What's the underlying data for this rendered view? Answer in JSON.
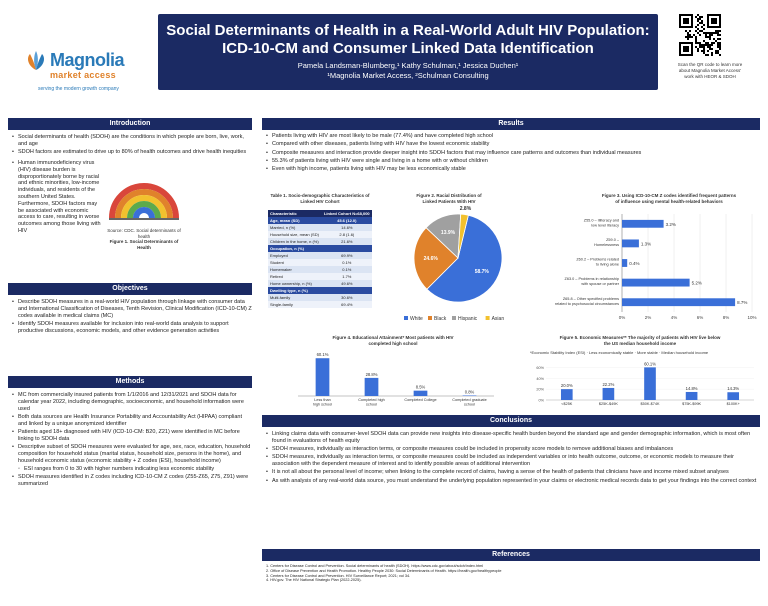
{
  "header": {
    "title_line1": "Social Determinants of Health in a Real-World Adult HIV Population:",
    "title_line2": "ICD-10-CM and Consumer Linked Data Identification",
    "authors": "Pamela Landsman-Blumberg,¹ Kathy Schulman,¹ Jessica Duchen¹",
    "affiliation": "¹Magnolia Market Access, ²Schulman Consulting",
    "logo_word": "Magnolia",
    "logo_sub": "market access",
    "logo_tag": "serving the modern growth company",
    "qr_caption_1": "Scan the QR code to learn more",
    "qr_caption_2": "about Magnolia Market Access'",
    "qr_caption_3": "work with HEOR & SDOH"
  },
  "colors": {
    "navy": "#1b2a63",
    "bar_blue": "#3a6fd8",
    "white_race": "#3a6fd8",
    "black_race": "#e0822b",
    "hispanic_race": "#a0a0a0",
    "asian_race": "#f2c12e"
  },
  "sections": {
    "introduction": "Introduction",
    "objectives": "Objectives",
    "methods": "Methods",
    "results": "Results",
    "conclusions": "Conclusions",
    "references": "References"
  },
  "intro": {
    "b1": "Social determinants of health (SDOH) are the conditions in which people are born, live, work, and age",
    "b2": "SDOH factors are estimated to drive up to 80% of health outcomes and drive health inequities",
    "b3": "Human immunodeficiency virus (HIV) disease burden is disproportionately borne by racial and ethnic minorities, low-income individuals, and residents of the southern United States. Furthermore, SDOH factors may be associated with economic access to care, resulting in worse outcomes among those living with HIV",
    "fig_caption_1": "Source: CDC. Social determinants of health",
    "fig_caption_2": "Figure 1. Social Determinants of Health"
  },
  "objectives": {
    "b1": "Describe SDOH measures in a real-world HIV population through linkage with consumer data and International Classification of Diseases, Tenth Revision, Clinical Modification (ICD-10-CM) Z codes available in medical claims (MC)",
    "b2": "Identify SDOH measures available for inclusion into real-world data analysis to support productive discussions, economic models, and other evidence generation activities"
  },
  "methods": {
    "b1": "MC from commercially insured patients from 1/1/2016 and 12/31/2021 and SDOH data for calendar year 2022, including demographic, socioeconomic, and household information were used",
    "b2": "Both data sources are Health Insurance Portability and Accountability Act (HIPAA) compliant and linked by a unique anonymized identifier",
    "b3": "Patients aged 18+ diagnosed with HIV (ICD-10-CM: B20, Z21) were identified in MC before linking to SDOH data",
    "b4": "Descriptive subset of SDOH measures were evaluated for age, sex, race, education, household composition for household status (marital status, household size, persons in the home), and household economic status (economic stability + Z codes (ESI), household income)",
    "b5": "ESI ranges from 0 to 30 with higher numbers indicating less economic stability",
    "b6": "SDOH measures identified in Z codes including ICD-10-CM Z codes (Z55-Z65, Z75, Z91) were summarized"
  },
  "results": {
    "b1": "Patients living with HIV are most likely to be male (77.4%) and have completed high school",
    "b2": "Compared with other diseases, patients living with HIV have the lowest economic stability",
    "b3": "Composite measures and interaction provide deeper insight into SDOH factors that may influence care patterns and outcomes than individual measures",
    "b4": "55.3% of patients living with HIV were single and living in a home with or without children",
    "b5": "Even with high income, patients living with HIV may be less economically stable"
  },
  "table1": {
    "title_1": "Table 1. Socio-demographic Characteristics of",
    "title_2": "Linked HIV Cohort",
    "col1": "Characteristic",
    "col2": "Linked Cohort N=68,000",
    "rows": [
      {
        "label": "Age, mean (SD)",
        "value": "45.6 (12.0)",
        "style": "band"
      },
      {
        "label": "Married, n (%)",
        "value": "14.6%",
        "style": "alt"
      },
      {
        "label": "Household size, mean (SD)",
        "value": "2.8 (1.6)",
        "style": "plain"
      },
      {
        "label": "Children in the home, n (%)",
        "value": "21.6%",
        "style": "alt"
      },
      {
        "label": "Occupation, n (%)",
        "value": "",
        "style": "band"
      },
      {
        "label": "Employed",
        "value": "69.9%",
        "style": "alt"
      },
      {
        "label": "Student",
        "value": "0.1%",
        "style": "plain"
      },
      {
        "label": "Homemaker",
        "value": "0.1%",
        "style": "alt"
      },
      {
        "label": "Retired",
        "value": "1.7%",
        "style": "plain"
      },
      {
        "label": "Home ownership, n (%)",
        "value": "49.6%",
        "style": "alt"
      },
      {
        "label": "Dwelling type, n (%)",
        "value": "",
        "style": "band"
      },
      {
        "label": "Multi-family",
        "value": "30.6%",
        "style": "alt"
      },
      {
        "label": "Single-family",
        "value": "69.4%",
        "style": "plain"
      }
    ]
  },
  "fig2": {
    "title_1": "Figure 2. Racial Distribution of",
    "title_2": "Linked Patients With HIV",
    "legend": [
      "White",
      "Black",
      "Hispanic",
      "Asian"
    ]
  },
  "fig3": {
    "title_1": "Figure 3. Using ICD-10-CM Z codes identified frequent patterns",
    "title_2": "of influence using mental health-related behaviors"
  },
  "fig4": {
    "title_1": "Figure 4. Educational Attainment* Most patients with HIV",
    "title_2": "completed high school"
  },
  "fig5": {
    "title_1": "Figure 5. Economic Measures** The majority of patients with HIV live below",
    "title_2": "the US median household income",
    "note_1": "*Economic Stability Index (ESI)",
    "note_2": "Less economically stable",
    "note_3": "More stable",
    "note_4": "Median household income"
  },
  "conclusions": {
    "b1": "Linking claims data with consumer-level SDOH data can provide new insights into disease-specific health burden beyond the standard age and gender demographic information, which is most often found in evaluations of health equity",
    "b2": "SDOH measures, individually as interaction terms, or composite measures could be included in propensity score models to remove additional biases and imbalances",
    "b3": "SDOH measures, individually as interaction terms, or composite measures could be included as independent variables or into health outcome, outcome, or economic models to measure their association with the dependent measure of interest and to identify possible areas of additional intervention",
    "b4": "It is not all about the personal level of income; when linking to the complete record of claims, having a sense of the health of patients that clinicians have and income mixed subset analyses",
    "b5": "As with analysis of any real-world data source, you must understand the underlying population represented in your claims or electronic medical records data to get your findings into the correct context"
  },
  "references": {
    "r1": "1. Centers for Disease Control and Prevention. Social determinants of health (SDOH). https://www.cdc.gov/about/sdoh/index.html",
    "r2": "2. Office of Disease Prevention and Health Promotion. Healthy People 2030: Social Determinants of Health. https://health.gov/healthypeople",
    "r3": "3. Centers for Disease Control and Prevention. HIV Surveillance Report; 2021; vol 34.",
    "r4": "4. HIV.gov. The HIV National Strategic Plan (2022-2025)."
  },
  "chart_data": [
    {
      "type": "pie",
      "title": "Figure 2. Racial Distribution of Linked Patients With HIV",
      "categories": [
        "White",
        "Black",
        "Hispanic",
        "Asian"
      ],
      "values": [
        58.7,
        24.6,
        13.9,
        2.8
      ],
      "labels": [
        "58.7%",
        "24.6%",
        "13.9%",
        "2.8%"
      ],
      "legend": "bottom"
    },
    {
      "type": "bar",
      "orientation": "horizontal",
      "title": "Figure 3. Using ICD-10-CM Z codes identified frequent patterns of influence using mental health-related behaviors",
      "categories": [
        "Z55.0 – Illiteracy and low level literacy",
        "Z59.0 – Homelessness",
        "Z60.2 – Problems related to living alone",
        "Z63.0 – Problems in relationship with spouse or partner",
        "Z65.8 – Other specified problems related to psychosocial circumstances"
      ],
      "values": [
        3.2,
        1.3,
        0.4,
        5.2,
        8.7
      ],
      "labels": [
        "3.2%",
        "1.3%",
        "0.4%",
        "5.2%",
        "8.7%"
      ],
      "xlim": [
        0,
        10
      ],
      "xticks": [
        "0%",
        "2%",
        "4%",
        "6%",
        "8%",
        "10%"
      ]
    },
    {
      "type": "bar",
      "title": "Figure 4. Educational Attainment",
      "categories": [
        "Less than high school",
        "Completed high school",
        "Completed College",
        "Completed graduate school"
      ],
      "values": [
        60.1,
        28.8,
        8.5,
        0.8
      ],
      "labels": [
        "60.1%",
        "28.8%",
        "8.5%",
        "0.8%"
      ],
      "ylim": [
        0,
        70
      ]
    },
    {
      "type": "bar",
      "title": "Figure 5. Economic Measures",
      "categories": [
        "<$25K",
        "$25K-$49K",
        "$50K-$74K",
        "$75K-$99K",
        "$100K+"
      ],
      "values": [
        20.0,
        22.2,
        60.1,
        14.8,
        14.3
      ],
      "labels": [
        "20.0%",
        "22.2%",
        "60.1%",
        "14.8%",
        "14.3%"
      ],
      "ylim": [
        0,
        70
      ]
    }
  ]
}
